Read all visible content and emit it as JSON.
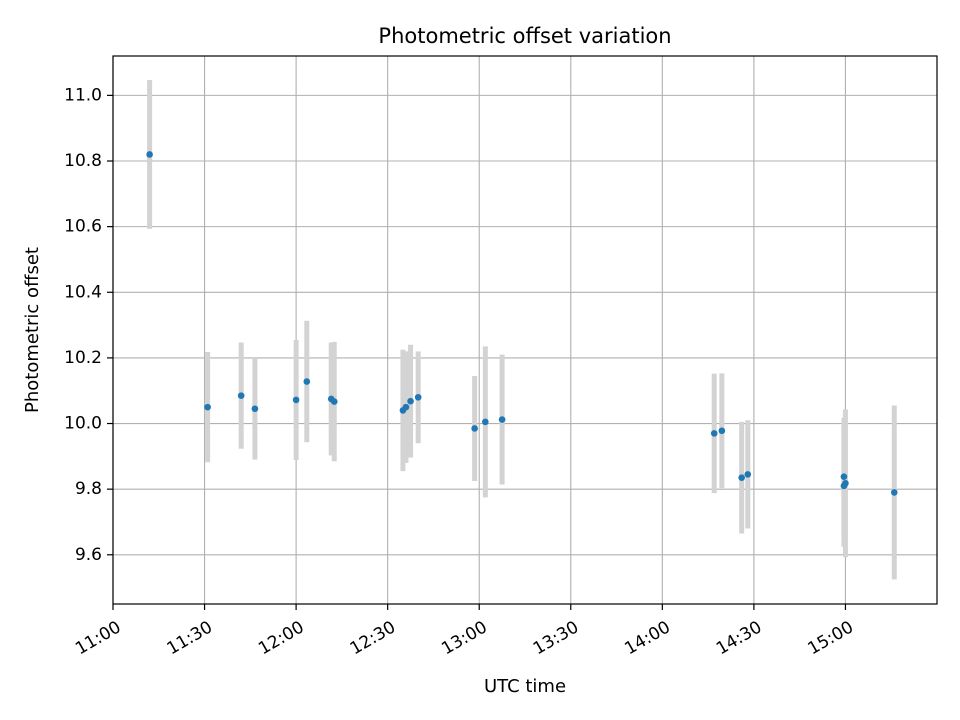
{
  "chart_data": {
    "type": "scatter",
    "title": "Photometric offset variation",
    "xlabel": "UTC time",
    "ylabel": "Photometric offset",
    "xlim": [
      "11:00",
      "15:30"
    ],
    "ylim": [
      9.45,
      11.12
    ],
    "x_ticks": [
      "11:00",
      "11:30",
      "12:00",
      "12:30",
      "13:00",
      "13:30",
      "14:00",
      "14:30",
      "15:00"
    ],
    "y_ticks": [
      "9.6",
      "9.8",
      "10.0",
      "10.2",
      "10.4",
      "10.6",
      "10.8",
      "11.0"
    ],
    "grid": true,
    "colors": {
      "points": "#1f77b4",
      "error_bars": "#d3d3d3",
      "grid": "#b0b0b0"
    },
    "points": [
      {
        "time": "11:12",
        "value": 10.82,
        "err": 0.227
      },
      {
        "time": "11:31",
        "value": 10.05,
        "err": 0.168
      },
      {
        "time": "11:42",
        "value": 10.085,
        "err": 0.162
      },
      {
        "time": "11:46.5",
        "value": 10.045,
        "err": 0.155
      },
      {
        "time": "12:00",
        "value": 10.072,
        "err": 0.183
      },
      {
        "time": "12:03.5",
        "value": 10.128,
        "err": 0.185
      },
      {
        "time": "12:11.5",
        "value": 10.075,
        "err": 0.172
      },
      {
        "time": "12:12.5",
        "value": 10.067,
        "err": 0.182
      },
      {
        "time": "12:35",
        "value": 10.04,
        "err": 0.185
      },
      {
        "time": "12:36",
        "value": 10.05,
        "err": 0.17
      },
      {
        "time": "12:37.5",
        "value": 10.068,
        "err": 0.172
      },
      {
        "time": "12:40",
        "value": 10.08,
        "err": 0.14
      },
      {
        "time": "12:58.5",
        "value": 9.985,
        "err": 0.16
      },
      {
        "time": "13:02",
        "value": 10.005,
        "err": 0.23
      },
      {
        "time": "13:07.5",
        "value": 10.012,
        "err": 0.198
      },
      {
        "time": "14:17",
        "value": 9.97,
        "err": 0.182
      },
      {
        "time": "14:19.5",
        "value": 9.978,
        "err": 0.175
      },
      {
        "time": "14:26",
        "value": 9.835,
        "err": 0.17
      },
      {
        "time": "14:28",
        "value": 9.845,
        "err": 0.165
      },
      {
        "time": "14:59.5",
        "value": 9.81,
        "err": 0.185
      },
      {
        "time": "14:59.5",
        "value": 9.838,
        "err": 0.18
      },
      {
        "time": "15:00",
        "value": 9.818,
        "err": 0.225
      },
      {
        "time": "15:16",
        "value": 9.79,
        "err": 0.265
      }
    ]
  }
}
